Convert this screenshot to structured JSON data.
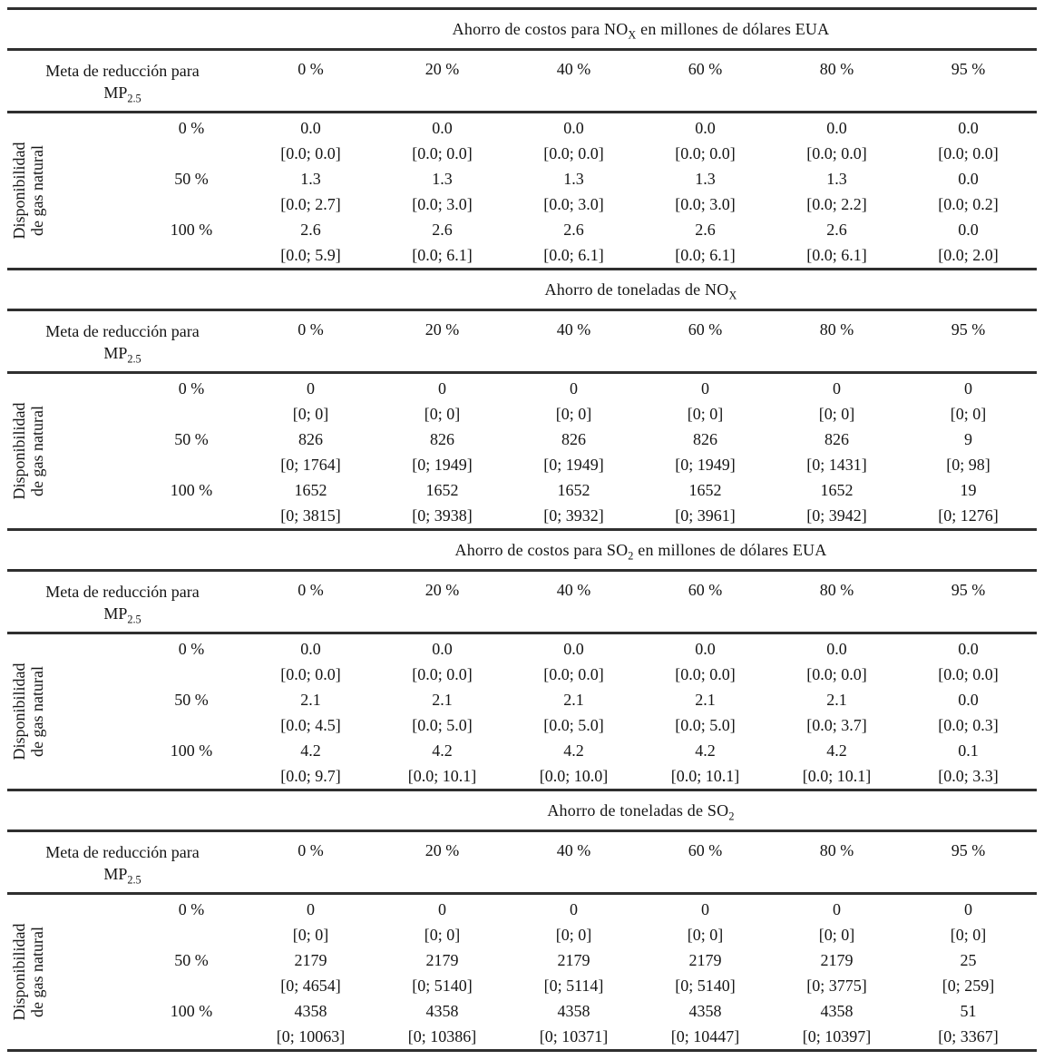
{
  "table": {
    "row_group_label": "Disponibilidad de gas natural",
    "row_group_label_lines": [
      "Disponibilidad",
      "de gas natural"
    ],
    "header_label_line1": "Meta de reducción para",
    "header_label_line2": "MP_{2.5}",
    "col_headers": [
      "0 %",
      "20 %",
      "40 %",
      "60 %",
      "80 %",
      "95 %"
    ],
    "sections": [
      {
        "title": "Ahorro de costos para NO_{X} en millones de dólares EUA",
        "rows": [
          {
            "label": "0 %",
            "cells": [
              {
                "value": "0.0",
                "range": "[0.0; 0.0]"
              },
              {
                "value": "0.0",
                "range": "[0.0; 0.0]"
              },
              {
                "value": "0.0",
                "range": "[0.0; 0.0]"
              },
              {
                "value": "0.0",
                "range": "[0.0; 0.0]"
              },
              {
                "value": "0.0",
                "range": "[0.0; 0.0]"
              },
              {
                "value": "0.0",
                "range": "[0.0; 0.0]"
              }
            ]
          },
          {
            "label": "50 %",
            "cells": [
              {
                "value": "1.3",
                "range": "[0.0; 2.7]"
              },
              {
                "value": "1.3",
                "range": "[0.0; 3.0]"
              },
              {
                "value": "1.3",
                "range": "[0.0; 3.0]"
              },
              {
                "value": "1.3",
                "range": "[0.0; 3.0]"
              },
              {
                "value": "1.3",
                "range": "[0.0; 2.2]"
              },
              {
                "value": "0.0",
                "range": "[0.0; 0.2]"
              }
            ]
          },
          {
            "label": "100 %",
            "cells": [
              {
                "value": "2.6",
                "range": "[0.0; 5.9]"
              },
              {
                "value": "2.6",
                "range": "[0.0; 6.1]"
              },
              {
                "value": "2.6",
                "range": "[0.0; 6.1]"
              },
              {
                "value": "2.6",
                "range": "[0.0; 6.1]"
              },
              {
                "value": "2.6",
                "range": "[0.0; 6.1]"
              },
              {
                "value": "0.0",
                "range": "[0.0; 2.0]"
              }
            ]
          }
        ]
      },
      {
        "title": "Ahorro de toneladas de NO_{X}",
        "rows": [
          {
            "label": "0 %",
            "cells": [
              {
                "value": "0",
                "range": "[0; 0]"
              },
              {
                "value": "0",
                "range": "[0; 0]"
              },
              {
                "value": "0",
                "range": "[0; 0]"
              },
              {
                "value": "0",
                "range": "[0; 0]"
              },
              {
                "value": "0",
                "range": "[0; 0]"
              },
              {
                "value": "0",
                "range": "[0; 0]"
              }
            ]
          },
          {
            "label": "50 %",
            "cells": [
              {
                "value": "826",
                "range": "[0; 1764]"
              },
              {
                "value": "826",
                "range": "[0; 1949]"
              },
              {
                "value": "826",
                "range": "[0; 1949]"
              },
              {
                "value": "826",
                "range": "[0; 1949]"
              },
              {
                "value": "826",
                "range": "[0; 1431]"
              },
              {
                "value": "9",
                "range": "[0; 98]"
              }
            ]
          },
          {
            "label": "100 %",
            "cells": [
              {
                "value": "1652",
                "range": "[0; 3815]"
              },
              {
                "value": "1652",
                "range": "[0; 3938]"
              },
              {
                "value": "1652",
                "range": "[0; 3932]"
              },
              {
                "value": "1652",
                "range": "[0; 3961]"
              },
              {
                "value": "1652",
                "range": "[0; 3942]"
              },
              {
                "value": "19",
                "range": "[0; 1276]"
              }
            ]
          }
        ]
      },
      {
        "title": "Ahorro de costos para SO_{2} en millones de dólares EUA",
        "rows": [
          {
            "label": "0 %",
            "cells": [
              {
                "value": "0.0",
                "range": "[0.0; 0.0]"
              },
              {
                "value": "0.0",
                "range": "[0.0; 0.0]"
              },
              {
                "value": "0.0",
                "range": "[0.0; 0.0]"
              },
              {
                "value": "0.0",
                "range": "[0.0; 0.0]"
              },
              {
                "value": "0.0",
                "range": "[0.0; 0.0]"
              },
              {
                "value": "0.0",
                "range": "[0.0; 0.0]"
              }
            ]
          },
          {
            "label": "50 %",
            "cells": [
              {
                "value": "2.1",
                "range": "[0.0; 4.5]"
              },
              {
                "value": "2.1",
                "range": "[0.0; 5.0]"
              },
              {
                "value": "2.1",
                "range": "[0.0; 5.0]"
              },
              {
                "value": "2.1",
                "range": "[0.0; 5.0]"
              },
              {
                "value": "2.1",
                "range": "[0.0; 3.7]"
              },
              {
                "value": "0.0",
                "range": "[0.0; 0.3]"
              }
            ]
          },
          {
            "label": "100 %",
            "cells": [
              {
                "value": "4.2",
                "range": "[0.0; 9.7]"
              },
              {
                "value": "4.2",
                "range": "[0.0; 10.1]"
              },
              {
                "value": "4.2",
                "range": "[0.0; 10.0]"
              },
              {
                "value": "4.2",
                "range": "[0.0; 10.1]"
              },
              {
                "value": "4.2",
                "range": "[0.0; 10.1]"
              },
              {
                "value": "0.1",
                "range": "[0.0; 3.3]"
              }
            ]
          }
        ]
      },
      {
        "title": "Ahorro de toneladas de SO_{2}",
        "rows": [
          {
            "label": "0 %",
            "cells": [
              {
                "value": "0",
                "range": "[0; 0]"
              },
              {
                "value": "0",
                "range": "[0; 0]"
              },
              {
                "value": "0",
                "range": "[0; 0]"
              },
              {
                "value": "0",
                "range": "[0; 0]"
              },
              {
                "value": "0",
                "range": "[0; 0]"
              },
              {
                "value": "0",
                "range": "[0; 0]"
              }
            ]
          },
          {
            "label": "50 %",
            "cells": [
              {
                "value": "2179",
                "range": "[0; 4654]"
              },
              {
                "value": "2179",
                "range": "[0; 5140]"
              },
              {
                "value": "2179",
                "range": "[0; 5114]"
              },
              {
                "value": "2179",
                "range": "[0; 5140]"
              },
              {
                "value": "2179",
                "range": "[0; 3775]"
              },
              {
                "value": "25",
                "range": "[0; 259]"
              }
            ]
          },
          {
            "label": "100 %",
            "cells": [
              {
                "value": "4358",
                "range": "[0; 10063]"
              },
              {
                "value": "4358",
                "range": "[0; 10386]"
              },
              {
                "value": "4358",
                "range": "[0; 10371]"
              },
              {
                "value": "4358",
                "range": "[0; 10447]"
              },
              {
                "value": "4358",
                "range": "[0; 10397]"
              },
              {
                "value": "51",
                "range": "[0; 3367]"
              }
            ]
          }
        ]
      }
    ]
  }
}
